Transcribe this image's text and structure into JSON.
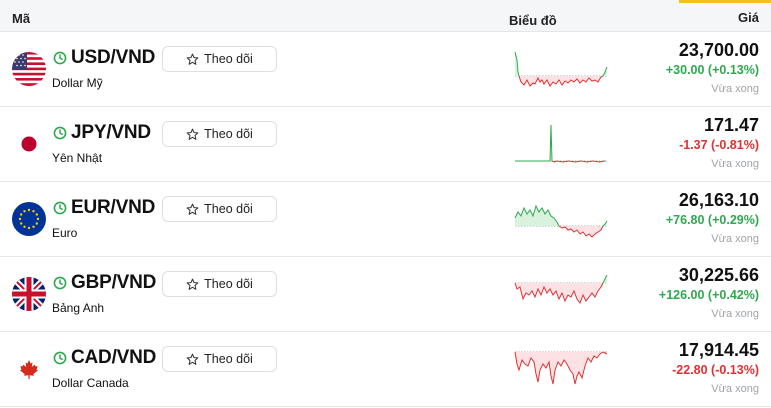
{
  "header": {
    "code": "Mã",
    "chart": "Biểu đồ",
    "price": "Giá"
  },
  "colors": {
    "up": "#2fa84f",
    "down": "#e03131",
    "accent": "#f3c11b"
  },
  "rows": [
    {
      "pair": "USD/VND",
      "name": "Dollar Mỹ",
      "follow": "Theo dõi",
      "price": "23,700.00",
      "change": "+30.00 (+0.13%)",
      "direction": "up",
      "updated": "Vừa xong",
      "flag_icon": "us-flag-icon"
    },
    {
      "pair": "JPY/VND",
      "name": "Yên Nhật",
      "follow": "Theo dõi",
      "price": "171.47",
      "change": "-1.37 (-0.81%)",
      "direction": "down",
      "updated": "Vừa xong",
      "flag_icon": "japan-flag-icon"
    },
    {
      "pair": "EUR/VND",
      "name": "Euro",
      "follow": "Theo dõi",
      "price": "26,163.10",
      "change": "+76.80 (+0.29%)",
      "direction": "up",
      "updated": "Vừa xong",
      "flag_icon": "eu-flag-icon"
    },
    {
      "pair": "GBP/VND",
      "name": "Bảng Anh",
      "follow": "Theo dõi",
      "price": "30,225.66",
      "change": "+126.00 (+0.42%)",
      "direction": "up",
      "updated": "Vừa xong",
      "flag_icon": "uk-flag-icon"
    },
    {
      "pair": "CAD/VND",
      "name": "Dollar Canada",
      "follow": "Theo dõi",
      "price": "17,914.45",
      "change": "-22.80 (-0.13%)",
      "direction": "down",
      "updated": "Vừa xong",
      "flag_icon": "canada-flag-icon"
    }
  ]
}
